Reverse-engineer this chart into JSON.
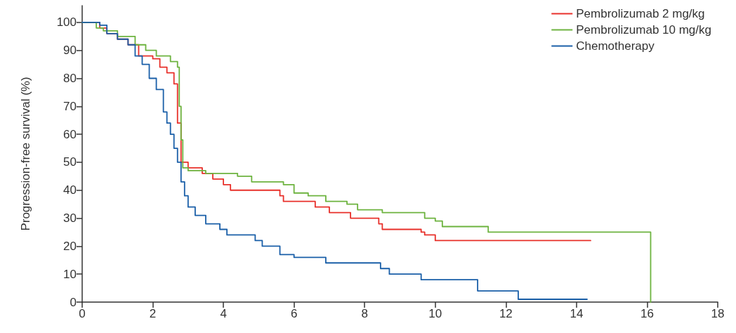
{
  "chart_data": {
    "type": "step",
    "ylabel": "Progression-free survival (%)",
    "xlim": [
      0,
      18
    ],
    "xticks": [
      0,
      2,
      4,
      6,
      8,
      10,
      12,
      14,
      16,
      18
    ],
    "ylim": [
      0,
      106
    ],
    "yticks": [
      0,
      10,
      20,
      30,
      40,
      50,
      60,
      70,
      80,
      90,
      100
    ],
    "grid": false,
    "legend": "top right",
    "marker": "none",
    "line_style": "solid",
    "series": [
      {
        "name": "Pembrolizumab 2 mg/kg",
        "color": "#e8302a",
        "x": [
          0,
          0.5,
          0.7,
          1.0,
          1.3,
          1.6,
          2.0,
          2.2,
          2.4,
          2.6,
          2.7,
          2.8,
          3.0,
          3.4,
          3.7,
          4.0,
          4.2,
          5.6,
          5.7,
          6.6,
          7.0,
          7.6,
          8.4,
          8.5,
          9.6,
          9.7,
          10.0,
          14.4
        ],
        "values": [
          100,
          98,
          96,
          94,
          92,
          88,
          87,
          84,
          82,
          78,
          64,
          50,
          48,
          46,
          44,
          42,
          40,
          38,
          36,
          34,
          32,
          30,
          28,
          26,
          25,
          24,
          22,
          22
        ]
      },
      {
        "name": "Pembrolizumab 10 mg/kg",
        "color": "#6db33f",
        "x": [
          0,
          0.4,
          0.6,
          1.0,
          1.5,
          1.8,
          2.1,
          2.5,
          2.7,
          2.75,
          2.8,
          2.85,
          3.0,
          3.5,
          4.4,
          4.8,
          5.7,
          6.0,
          6.4,
          6.9,
          7.5,
          7.8,
          8.5,
          9.7,
          10.0,
          10.2,
          11.5,
          16.1,
          16.1
        ],
        "values": [
          100,
          98,
          97,
          95,
          92,
          90,
          88,
          86,
          84,
          70,
          58,
          48,
          47,
          46,
          45,
          43,
          42,
          39,
          38,
          36,
          35,
          33,
          32,
          30,
          29,
          27,
          25,
          25,
          0
        ]
      },
      {
        "name": "Chemotherapy",
        "color": "#1a5fa8",
        "x": [
          0,
          0.5,
          0.7,
          1.0,
          1.3,
          1.5,
          1.7,
          1.9,
          2.1,
          2.3,
          2.4,
          2.5,
          2.6,
          2.7,
          2.8,
          2.9,
          3.0,
          3.2,
          3.5,
          3.9,
          4.1,
          4.9,
          5.1,
          5.6,
          6.0,
          6.9,
          8.45,
          8.7,
          9.6,
          11.2,
          12.35,
          14.3
        ],
        "values": [
          100,
          99,
          96,
          94,
          92,
          88,
          85,
          80,
          76,
          68,
          64,
          60,
          55,
          50,
          43,
          38,
          34,
          31,
          28,
          26,
          24,
          22,
          20,
          17,
          16,
          14,
          12,
          10,
          8,
          4,
          1,
          1
        ]
      }
    ]
  }
}
